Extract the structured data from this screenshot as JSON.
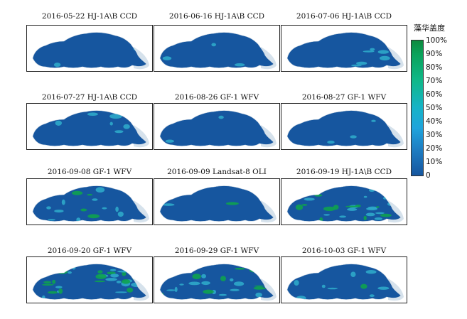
{
  "panels": [
    {
      "title": "2016-05-22 HJ-1A\\B CCD",
      "bloom_level": 0.03
    },
    {
      "title": "2016-06-16 HJ-1A\\B CCD",
      "bloom_level": 0.05
    },
    {
      "title": "2016-07-06 HJ-1A\\B CCD",
      "bloom_level": 0.12
    },
    {
      "title": "2016-07-27 HJ-1A\\B CCD",
      "bloom_level": 0.1
    },
    {
      "title": "2016-08-26 GF-1 WFV",
      "bloom_level": 0.04
    },
    {
      "title": "2016-08-27 GF-1 WFV",
      "bloom_level": 0.06
    },
    {
      "title": "2016-09-08 GF-1 WFV",
      "bloom_level": 0.25
    },
    {
      "title": "2016-09-09 Landsat-8 OLI",
      "bloom_level": 0.04
    },
    {
      "title": "2016-09-19 HJ-1A\\B CCD",
      "bloom_level": 0.45
    },
    {
      "title": "2016-09-20 GF-1 WFV",
      "bloom_level": 0.55
    },
    {
      "title": "2016-09-29 GF-1 WFV",
      "bloom_level": 0.4
    },
    {
      "title": "2016-10-03 GF-1 WFV",
      "bloom_level": 0.15
    }
  ],
  "legend": {
    "title": "藻华盖度",
    "ticks": [
      "100%",
      "90%",
      "80%",
      "70%",
      "60%",
      "50%",
      "40%",
      "30%",
      "20%",
      "10%",
      "0"
    ]
  },
  "colors": {
    "water_base": "#16569f",
    "bloom_low": "#2ea9c9",
    "bloom_high": "#0ea24f",
    "land_mask": "#d6e2ec"
  }
}
